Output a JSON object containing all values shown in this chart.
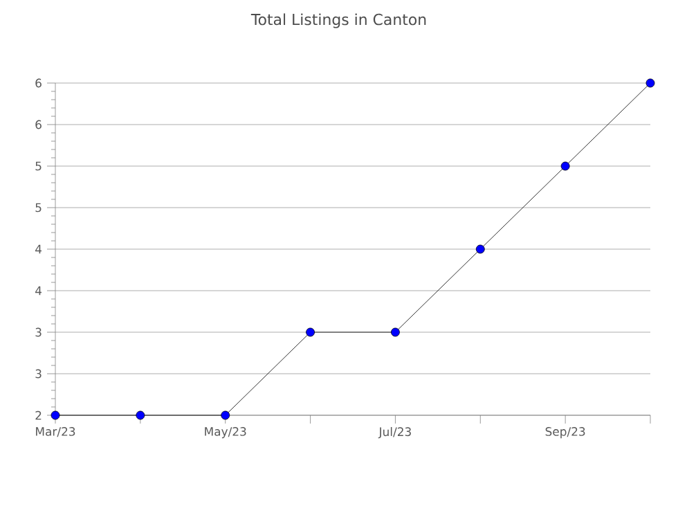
{
  "chart_data": {
    "type": "line",
    "title": "Total Listings in Canton",
    "x": [
      "2023-03",
      "2023-04",
      "2023-05",
      "2023-06",
      "2023-07",
      "2023-08",
      "2023-09",
      "2023-10"
    ],
    "series": [
      {
        "color": "#0000ff",
        "values": [
          2,
          2,
          2,
          3,
          3,
          4,
          5,
          6
        ]
      }
    ],
    "xlim": [
      "2023-03",
      "2023-10"
    ],
    "xticks": [
      {
        "value": "2023-03",
        "label": "Mar/23"
      },
      {
        "value": "2023-04",
        "label": null
      },
      {
        "value": "2023-05",
        "label": "May/23"
      },
      {
        "value": "2023-06",
        "label": null
      },
      {
        "value": "2023-07",
        "label": "Jul/23"
      },
      {
        "value": "2023-08",
        "label": null
      },
      {
        "value": "2023-09",
        "label": "Sep/23"
      },
      {
        "value": "2023-10",
        "label": null
      }
    ],
    "ylim": [
      2,
      6
    ],
    "yticks": [
      2,
      {
        "value": 2.5,
        "label": "3"
      },
      3,
      {
        "value": 3.5,
        "label": "4"
      },
      4,
      {
        "value": 4.5,
        "label": "5"
      },
      5,
      {
        "value": 5.5,
        "label": "6"
      },
      6
    ],
    "grid": "y",
    "marker": "circle",
    "line_style": "solid"
  }
}
